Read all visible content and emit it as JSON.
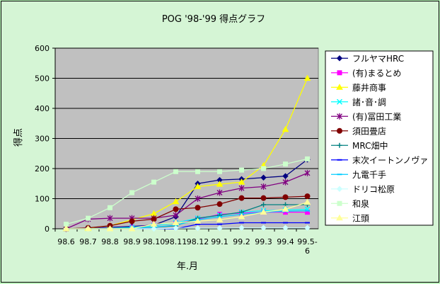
{
  "chart_data": {
    "type": "line",
    "title": "POG '98-'99 得点グラフ",
    "xlabel": "年.月",
    "ylabel": "得点",
    "ylim": [
      0,
      600
    ],
    "yticks": [
      0,
      100,
      200,
      300,
      400,
      500,
      600
    ],
    "grid": true,
    "legend": "right",
    "categories": [
      "98.6",
      "98.7",
      "98.8",
      "98.9",
      "98.10",
      "98.11",
      "98.12",
      "99.1",
      "99.2",
      "99.3",
      "99.4",
      "99.5-6"
    ],
    "series": [
      {
        "name": "フルヤマHRC",
        "color": "#000080",
        "marker": "diamond",
        "values": [
          0,
          2,
          5,
          8,
          12,
          40,
          150,
          162,
          165,
          170,
          175,
          230
        ]
      },
      {
        "name": "(有)まるとめ",
        "color": "#ff00ff",
        "marker": "square",
        "values": [
          0,
          0,
          3,
          5,
          12,
          20,
          32,
          48,
          52,
          55,
          55,
          55
        ]
      },
      {
        "name": "藤井商事",
        "color": "#ffff00",
        "marker": "triangle",
        "values": [
          0,
          2,
          10,
          30,
          50,
          90,
          140,
          148,
          155,
          210,
          330,
          500
        ]
      },
      {
        "name": "諸･音･調",
        "color": "#00ffff",
        "marker": "x",
        "values": [
          0,
          0,
          2,
          5,
          10,
          20,
          35,
          45,
          55,
          60,
          62,
          65
        ]
      },
      {
        "name": "(有)冨田工業",
        "color": "#800080",
        "marker": "star",
        "values": [
          0,
          32,
          35,
          35,
          35,
          45,
          100,
          120,
          135,
          140,
          155,
          185
        ]
      },
      {
        "name": "須田畳店",
        "color": "#800000",
        "marker": "circle",
        "values": [
          0,
          3,
          10,
          25,
          32,
          65,
          70,
          82,
          102,
          102,
          105,
          108
        ]
      },
      {
        "name": "MRC畑中",
        "color": "#008080",
        "marker": "plus",
        "values": [
          0,
          0,
          1,
          3,
          5,
          10,
          35,
          45,
          55,
          80,
          80,
          80
        ]
      },
      {
        "name": "末次イートンノヴァ",
        "color": "#0000ff",
        "marker": "dash",
        "values": [
          0,
          0,
          0,
          0,
          0,
          0,
          15,
          15,
          20,
          20,
          20,
          20
        ]
      },
      {
        "name": "九電千手",
        "color": "#00ccff",
        "marker": "dash",
        "values": [
          0,
          0,
          0,
          2,
          5,
          12,
          30,
          40,
          48,
          55,
          58,
          60
        ]
      },
      {
        "name": "ドリコ松原",
        "color": "#ccffff",
        "marker": "diamond",
        "values": [
          0,
          0,
          0,
          0,
          0,
          2,
          2,
          2,
          3,
          3,
          3,
          3
        ]
      },
      {
        "name": "和泉",
        "color": "#ccffcc",
        "marker": "square",
        "values": [
          15,
          35,
          70,
          120,
          155,
          190,
          190,
          190,
          195,
          200,
          215,
          232
        ]
      },
      {
        "name": "江頭",
        "color": "#ffff99",
        "marker": "triangle",
        "values": [
          0,
          0,
          0,
          0,
          15,
          20,
          25,
          30,
          40,
          55,
          65,
          88
        ]
      }
    ]
  }
}
